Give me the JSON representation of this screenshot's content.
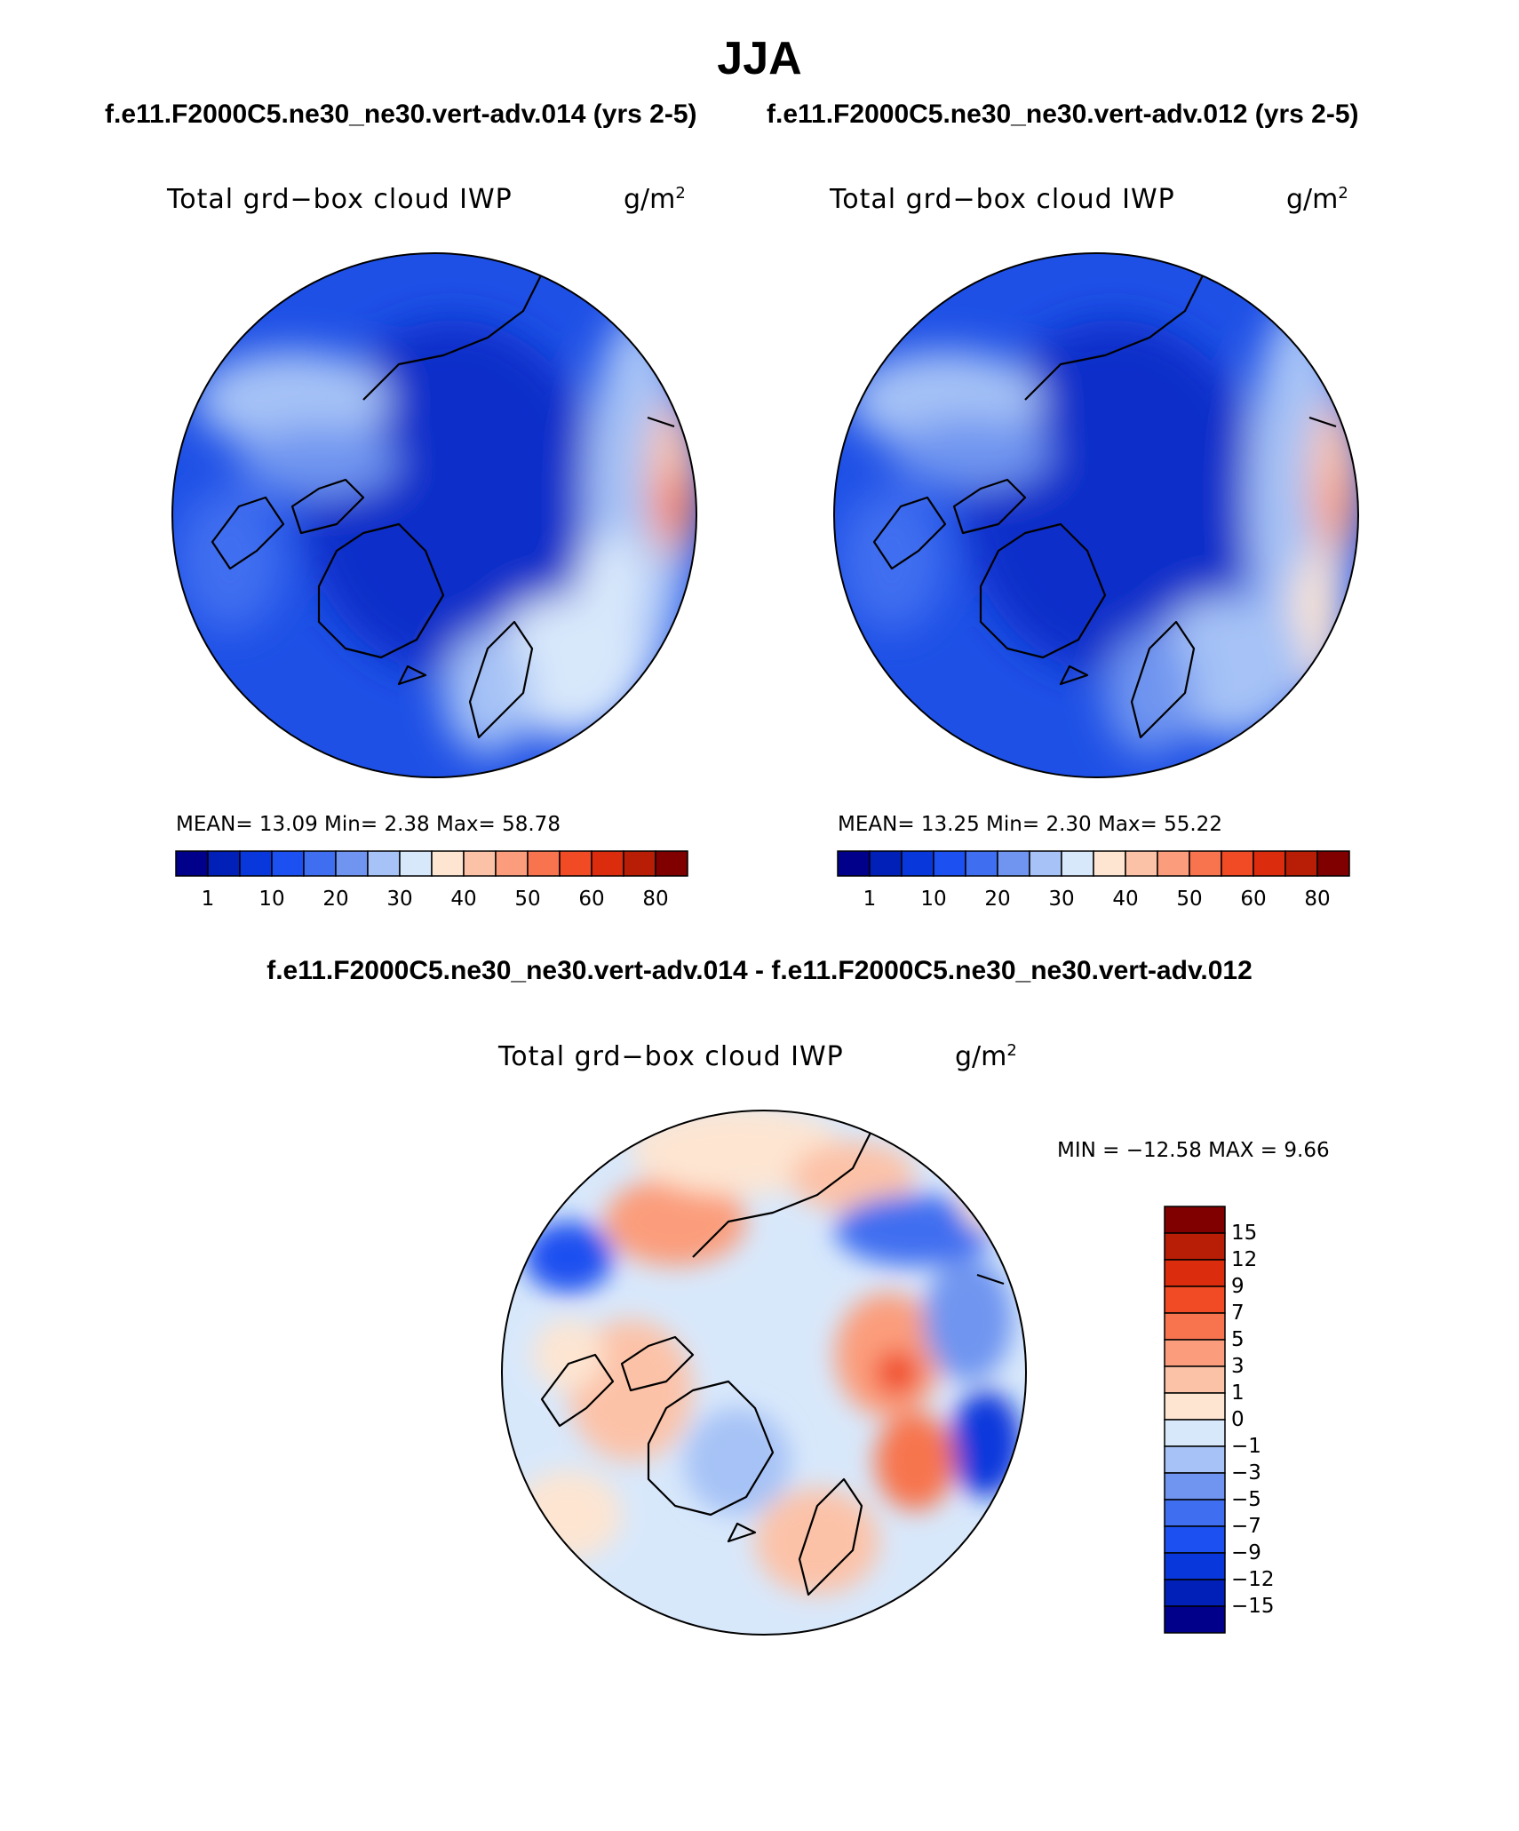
{
  "title": "JJA",
  "panels": [
    {
      "case": "f.e11.F2000C5.ne30_ne30.vert-adv.014 (yrs 2-5)",
      "variable": "Total grd−box cloud IWP",
      "units": "g/m",
      "units_exp": "2",
      "stats": "MEAN=   13.09   Min=     2.38   Max=   58.78"
    },
    {
      "case": "f.e11.F2000C5.ne30_ne30.vert-adv.012 (yrs 2-5)",
      "variable": "Total grd−box cloud IWP",
      "units": "g/m",
      "units_exp": "2",
      "stats": "MEAN=   13.25   Min=     2.30   Max=   55.22"
    }
  ],
  "diff": {
    "header": "f.e11.F2000C5.ne30_ne30.vert-adv.014 - f.e11.F2000C5.ne30_ne30.vert-adv.012",
    "variable": "Total grd−box cloud IWP",
    "units": "g/m",
    "units_exp": "2",
    "minmax": "MIN = −12.58  MAX =     9.66"
  },
  "colorbar_abs": {
    "colors": [
      "#00008b",
      "#0020b8",
      "#0838dc",
      "#1c50f0",
      "#3f6ef0",
      "#6f95f0",
      "#a6c2f6",
      "#d8e8fb",
      "#fde5d2",
      "#fcc2a8",
      "#fb9d7c",
      "#f7744e",
      "#f04b25",
      "#dc2c0e",
      "#b81d05",
      "#800000"
    ],
    "labels": [
      "1",
      "10",
      "20",
      "30",
      "40",
      "50",
      "60",
      "80"
    ]
  },
  "colorbar_diff": {
    "colors": [
      "#800000",
      "#b81d05",
      "#dc2c0e",
      "#f04b25",
      "#f7744e",
      "#fb9d7c",
      "#fcc2a8",
      "#fde5d2",
      "#d8e8fb",
      "#a6c2f6",
      "#6f95f0",
      "#3f6ef0",
      "#1c50f0",
      "#0838dc",
      "#0020b8",
      "#00008b"
    ],
    "labels": [
      "15",
      "12",
      "9",
      "7",
      "5",
      "3",
      "1",
      "0",
      "−1",
      "−3",
      "−5",
      "−7",
      "−9",
      "−12",
      "−15"
    ]
  }
}
